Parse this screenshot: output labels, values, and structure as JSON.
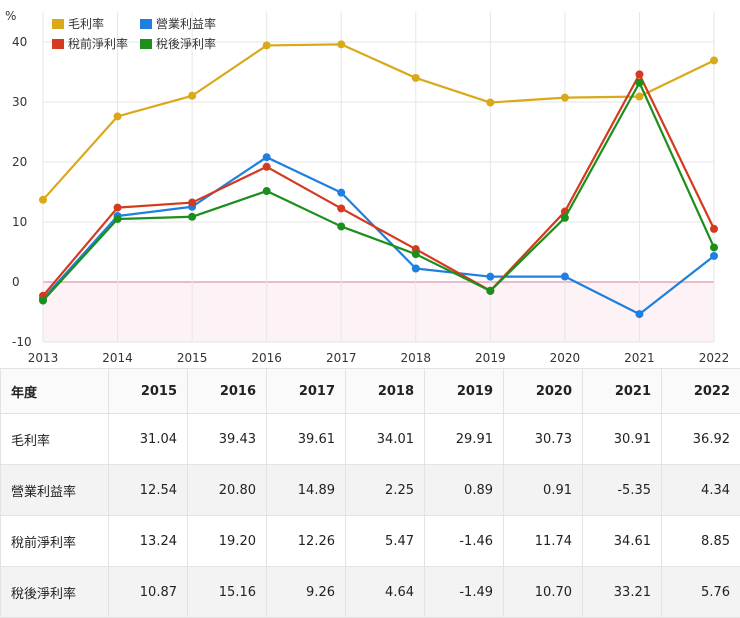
{
  "chart_data": {
    "type": "line",
    "ylabel": "%",
    "x": [
      "2013",
      "2014",
      "2015",
      "2016",
      "2017",
      "2018",
      "2019",
      "2020",
      "2021",
      "2022"
    ],
    "ylim": [
      -10,
      45
    ],
    "yticks": [
      -10,
      0,
      10,
      20,
      30,
      40
    ],
    "grid": true,
    "legend_position": "top-left",
    "series": [
      {
        "name": "毛利率",
        "color": "#d9a91a",
        "values": [
          13.7,
          27.6,
          31.04,
          39.43,
          39.61,
          34.01,
          29.91,
          30.73,
          30.91,
          36.92
        ]
      },
      {
        "name": "營業利益率",
        "color": "#1e7fe0",
        "values": [
          -2.8,
          11.0,
          12.54,
          20.8,
          14.89,
          2.25,
          0.89,
          0.91,
          -5.35,
          4.34
        ]
      },
      {
        "name": "稅前淨利率",
        "color": "#d33a1e",
        "values": [
          -2.3,
          12.4,
          13.24,
          19.2,
          12.26,
          5.47,
          -1.46,
          11.74,
          34.61,
          8.85
        ]
      },
      {
        "name": "稅後淨利率",
        "color": "#1b8f1b",
        "values": [
          -3.1,
          10.5,
          10.87,
          15.16,
          9.26,
          4.64,
          -1.49,
          10.7,
          33.21,
          5.76
        ]
      }
    ]
  },
  "table": {
    "corner_label": "年度",
    "years": [
      "2015",
      "2016",
      "2017",
      "2018",
      "2019",
      "2020",
      "2021",
      "2022"
    ],
    "rows": [
      {
        "label": "毛利率",
        "values": [
          "31.04",
          "39.43",
          "39.61",
          "34.01",
          "29.91",
          "30.73",
          "30.91",
          "36.92"
        ]
      },
      {
        "label": "營業利益率",
        "values": [
          "12.54",
          "20.80",
          "14.89",
          "2.25",
          "0.89",
          "0.91",
          "-5.35",
          "4.34"
        ]
      },
      {
        "label": "稅前淨利率",
        "values": [
          "13.24",
          "19.20",
          "12.26",
          "5.47",
          "-1.46",
          "11.74",
          "34.61",
          "8.85"
        ]
      },
      {
        "label": "稅後淨利率",
        "values": [
          "10.87",
          "15.16",
          "9.26",
          "4.64",
          "-1.49",
          "10.70",
          "33.21",
          "5.76"
        ]
      }
    ]
  }
}
